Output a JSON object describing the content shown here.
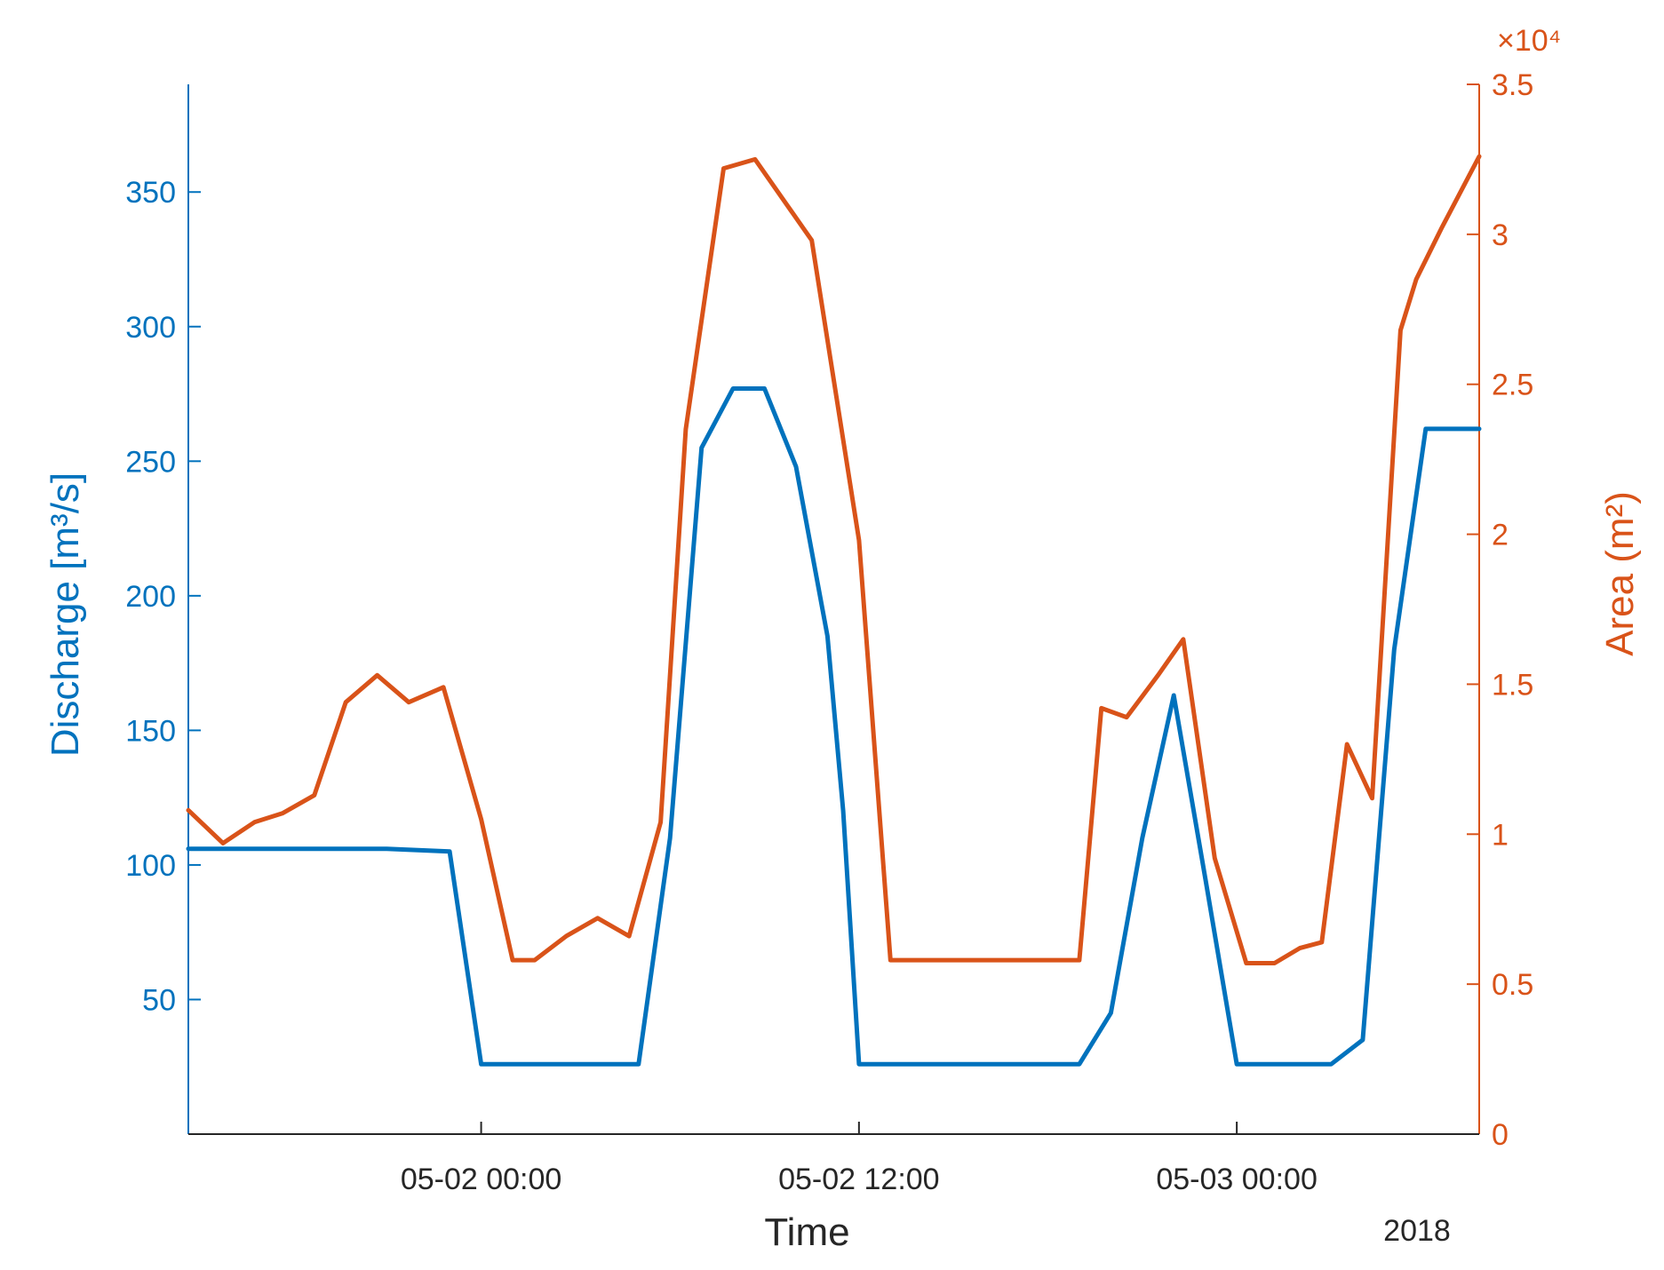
{
  "chart_data": {
    "type": "line",
    "xlabel": "Time",
    "x_secondary_label": "2018",
    "x_tick_labels": [
      "05-02 00:00",
      "05-02 12:00",
      "05-03 00:00"
    ],
    "x_tick_hours": [
      0,
      12,
      24
    ],
    "x_range_hours": [
      -9.3,
      31.7
    ],
    "y_left": {
      "label": "Discharge [m³/s]",
      "range": [
        0,
        390
      ],
      "ticks": [
        50,
        100,
        150,
        200,
        250,
        300,
        350
      ],
      "color": "#0072BD"
    },
    "y_right": {
      "label": "Area (m²)",
      "exponent_label": "×10⁴",
      "range": [
        0,
        3.5
      ],
      "ticks": [
        0,
        0.5,
        1,
        1.5,
        2,
        2.5,
        3,
        3.5
      ],
      "tick_labels": [
        "0",
        "0.5",
        "1",
        "1.5",
        "2",
        "2.5",
        "3",
        "3.5"
      ],
      "color": "#D95319"
    },
    "series": [
      {
        "name": "Discharge",
        "axis": "left",
        "color": "#0072BD",
        "hours": [
          -9.3,
          -3,
          -1,
          0,
          2,
          4,
          5,
          6,
          7,
          8,
          9,
          10,
          11,
          11.5,
          12,
          13,
          19,
          20,
          21,
          22,
          23,
          24,
          25,
          27,
          28,
          29,
          30,
          30.5,
          31.7
        ],
        "values": [
          106,
          106,
          105,
          26,
          26,
          26,
          26,
          110,
          255,
          277,
          277,
          248,
          185,
          120,
          26,
          26,
          26,
          45,
          110,
          163,
          95,
          26,
          26,
          26,
          35,
          180,
          262,
          262,
          262
        ]
      },
      {
        "name": "Area",
        "axis": "right",
        "color": "#D95319",
        "hours": [
          -9.3,
          -8.2,
          -7.2,
          -6.3,
          -5.3,
          -4.3,
          -3.3,
          -2.3,
          -1.2,
          0,
          1,
          1.7,
          2.7,
          3.7,
          4.7,
          5.7,
          6.5,
          7.7,
          8.7,
          10.5,
          12,
          13,
          16,
          19,
          19.7,
          20.5,
          21.5,
          22.3,
          23.3,
          24.3,
          25.2,
          26,
          26.7,
          27.5,
          28.3,
          29.2,
          29.7,
          30.5,
          31.7
        ],
        "values": [
          1.08,
          0.97,
          1.04,
          1.07,
          1.13,
          1.44,
          1.53,
          1.44,
          1.49,
          1.05,
          0.58,
          0.58,
          0.66,
          0.72,
          0.66,
          1.04,
          2.35,
          3.22,
          3.25,
          2.98,
          1.98,
          0.58,
          0.58,
          0.58,
          1.42,
          1.39,
          1.53,
          1.65,
          0.92,
          0.57,
          0.57,
          0.62,
          0.64,
          1.3,
          1.12,
          2.68,
          2.85,
          3.02,
          3.26
        ]
      }
    ]
  }
}
